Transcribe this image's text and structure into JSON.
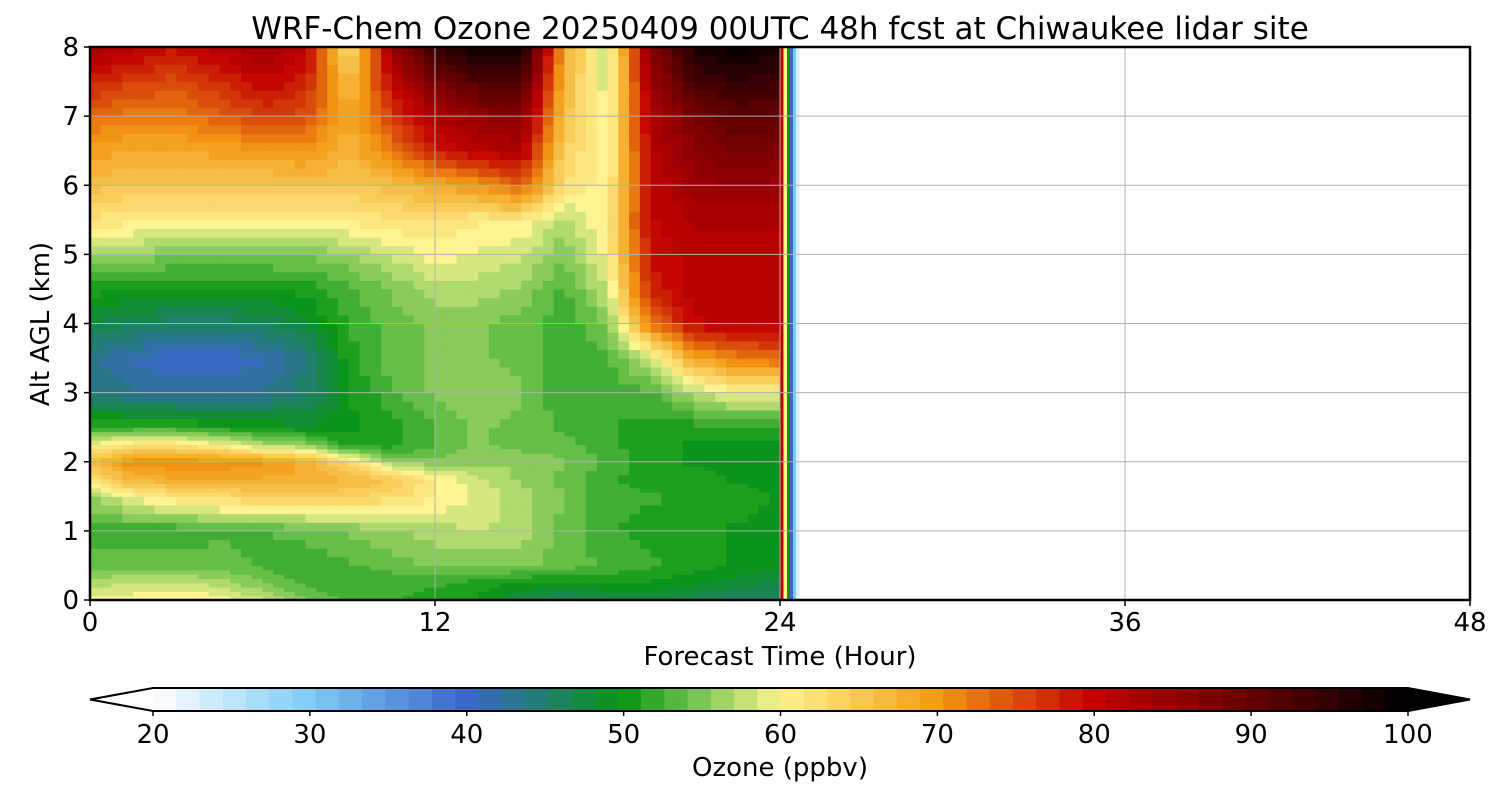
{
  "figure": {
    "title": "WRF-Chem Ozone  20250409 00UTC 48h fcst at Chiwaukee lidar site"
  },
  "chart_data": {
    "type": "heatmap",
    "title": "WRF-Chem Ozone  20250409 00UTC 48h fcst at Chiwaukee lidar site",
    "xlabel": "Forecast Time (Hour)",
    "ylabel": "Alt AGL (km)",
    "xlim": [
      0,
      48
    ],
    "ylim": [
      0,
      8
    ],
    "xticks": [
      0,
      12,
      24,
      36,
      48
    ],
    "yticks": [
      0,
      1,
      2,
      3,
      4,
      5,
      6,
      7,
      8
    ],
    "grid": true,
    "data_available_through_hour": 24,
    "colorbar": {
      "label": "Ozone  (ppbv)",
      "range": [
        20,
        100
      ],
      "ticks": [
        20,
        30,
        40,
        50,
        60,
        70,
        80,
        90,
        100
      ],
      "extend": "both",
      "orientation": "horizontal",
      "colors": {
        "20": "#ffffff",
        "30": "#7ecbf6",
        "40": "#3a67c8",
        "50": "#079612",
        "55": "#7cc855",
        "60": "#fef491",
        "70": "#f39a14",
        "80": "#c20000",
        "90": "#650000",
        "100": "#000000"
      }
    },
    "hours": [
      0,
      1.5,
      3,
      4.5,
      6,
      7.5,
      9,
      10.5,
      12,
      13.5,
      15,
      16.5,
      18,
      19.5,
      21,
      22.5,
      24
    ],
    "altitudes_km": [
      0,
      0.25,
      0.5,
      1,
      1.5,
      1.75,
      2,
      2.25,
      2.5,
      3,
      3.5,
      4,
      4.5,
      5,
      5.5,
      6,
      6.5,
      7,
      7.5,
      8
    ],
    "ozone_ppbv": [
      [
        60,
        60,
        61,
        60,
        58,
        55,
        53,
        52,
        51,
        50,
        47,
        45,
        47,
        48,
        46,
        45,
        45
      ],
      [
        57,
        58,
        58,
        57,
        55,
        53,
        52,
        52,
        52,
        51,
        50,
        50,
        50,
        50,
        49,
        48,
        47
      ],
      [
        54,
        54,
        54,
        54,
        53,
        52,
        53,
        54,
        55,
        55,
        55,
        54,
        53,
        52,
        51,
        50,
        49
      ],
      [
        52,
        52,
        52,
        53,
        53,
        54,
        55,
        56,
        57,
        58,
        57,
        54,
        52,
        51,
        51,
        50,
        49
      ],
      [
        56,
        60,
        62,
        63,
        64,
        64,
        64,
        63,
        61,
        59,
        57,
        55,
        52,
        52,
        51,
        51,
        50
      ],
      [
        62,
        67,
        68,
        68,
        68,
        68,
        67,
        65,
        61,
        58,
        56,
        54,
        52,
        51,
        51,
        50,
        50
      ],
      [
        66,
        71,
        71,
        71,
        70,
        68,
        63,
        56,
        55,
        56,
        56,
        55,
        53,
        51,
        50,
        50,
        50
      ],
      [
        60,
        62,
        62,
        60,
        57,
        56,
        51,
        51,
        53,
        55,
        54,
        54,
        52,
        51,
        50,
        50,
        50
      ],
      [
        52,
        52,
        52,
        51,
        50,
        49,
        50,
        51,
        53,
        55,
        54,
        53,
        52,
        51,
        51,
        51,
        51
      ],
      [
        44,
        43,
        42,
        42,
        43,
        45,
        50,
        53,
        55,
        56,
        55,
        52,
        52,
        53,
        57,
        60,
        60
      ],
      [
        43,
        41,
        40,
        40,
        41,
        44,
        51,
        54,
        55,
        55,
        54,
        52,
        53,
        58,
        68,
        72,
        73
      ],
      [
        47,
        46,
        45,
        45,
        46,
        48,
        52,
        54,
        55,
        55,
        54,
        52,
        55,
        72,
        80,
        81,
        81
      ],
      [
        51,
        50,
        50,
        50,
        50,
        51,
        53,
        55,
        57,
        57,
        56,
        53,
        58,
        78,
        81,
        81,
        81
      ],
      [
        57,
        56,
        55,
        55,
        55,
        55,
        56,
        58,
        60,
        59,
        58,
        55,
        60,
        79,
        81,
        81,
        81
      ],
      [
        62,
        61,
        61,
        61,
        61,
        60,
        61,
        62,
        62,
        61,
        61,
        57,
        61,
        80,
        82,
        82,
        82
      ],
      [
        66,
        65,
        65,
        65,
        65,
        66,
        65,
        66,
        68,
        70,
        74,
        62,
        60,
        80,
        84,
        85,
        84
      ],
      [
        69,
        68,
        68,
        69,
        69,
        70,
        67,
        72,
        78,
        81,
        82,
        64,
        59,
        81,
        86,
        88,
        87
      ],
      [
        73,
        72,
        72,
        74,
        76,
        75,
        68,
        76,
        82,
        85,
        86,
        66,
        59,
        82,
        88,
        91,
        90
      ],
      [
        78,
        76,
        75,
        77,
        80,
        78,
        66,
        80,
        88,
        92,
        93,
        67,
        58,
        84,
        93,
        95,
        94
      ],
      [
        83,
        81,
        79,
        81,
        84,
        81,
        62,
        84,
        95,
        99,
        99,
        68,
        58,
        86,
        97,
        99,
        97
      ]
    ]
  }
}
